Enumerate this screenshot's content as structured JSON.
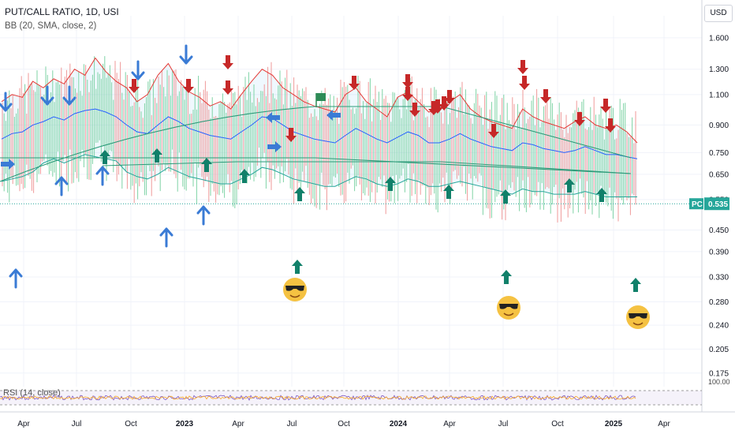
{
  "header": {
    "title": "PUT/CALL RATIO, 1D, USI",
    "indicator": "BB (20, SMA, close, 2)",
    "currency_button": "USD"
  },
  "rsi": {
    "label": "RSI (14, close)",
    "top_value": "100.00"
  },
  "price_tag": {
    "symbol": "PC",
    "value": "0.535",
    "color": "#26a69a"
  },
  "colors": {
    "candle_up": "#7fd3a6",
    "candle_down": "#ef9a9a",
    "bb_upper": "#e53935",
    "bb_lower": "#26a69a",
    "bb_basis": "#2962ff",
    "arrow_blue": "#3a7bd5",
    "arrow_red": "#c62828",
    "arrow_green": "#11806a"
  },
  "chart_data": {
    "type": "line",
    "title": "PUT/CALL RATIO, 1D, USI",
    "y_scale": "log",
    "y_ticks": [
      "1.600",
      "1.300",
      "1.100",
      "0.900",
      "0.750",
      "0.650",
      "0.550",
      "0.450",
      "0.390",
      "0.330",
      "0.280",
      "0.240",
      "0.205",
      "0.175"
    ],
    "x_ticks": [
      "Apr",
      "Jul",
      "Oct",
      "2023",
      "Apr",
      "Jul",
      "Oct",
      "2024",
      "Apr",
      "Jul",
      "Oct",
      "2025",
      "Apr"
    ],
    "x_ticks_bold": [
      "2023",
      "2024",
      "2025"
    ],
    "last_value": 0.535,
    "series": [
      {
        "name": "BB upper",
        "values": [
          1.05,
          1.1,
          1.08,
          1.2,
          1.15,
          1.22,
          1.18,
          1.3,
          1.25,
          1.4,
          1.28,
          1.2,
          1.15,
          1.05,
          1.1,
          1.25,
          1.35,
          1.2,
          1.12,
          1.08,
          1.02,
          1.05,
          1.0,
          1.1,
          1.2,
          1.3,
          1.25,
          1.15,
          1.1,
          1.05,
          1.02,
          1.0,
          0.98,
          1.1,
          1.15,
          1.05,
          1.0,
          0.95,
          1.08,
          1.12,
          1.05,
          0.98,
          1.0,
          1.05,
          1.1,
          1.0,
          0.95,
          0.92,
          0.9,
          0.88,
          1.0,
          0.95,
          0.92,
          0.9,
          0.88,
          0.92,
          0.95,
          0.9,
          0.88,
          0.9,
          0.86,
          0.8
        ]
      },
      {
        "name": "BB basis",
        "values": [
          0.82,
          0.85,
          0.86,
          0.9,
          0.92,
          0.95,
          0.93,
          0.97,
          0.99,
          1.0,
          0.98,
          0.95,
          0.9,
          0.86,
          0.85,
          0.9,
          0.95,
          0.92,
          0.88,
          0.86,
          0.84,
          0.83,
          0.82,
          0.86,
          0.9,
          0.95,
          0.94,
          0.9,
          0.86,
          0.84,
          0.82,
          0.81,
          0.8,
          0.84,
          0.88,
          0.85,
          0.82,
          0.8,
          0.83,
          0.86,
          0.84,
          0.8,
          0.8,
          0.82,
          0.85,
          0.82,
          0.8,
          0.78,
          0.77,
          0.76,
          0.8,
          0.79,
          0.77,
          0.76,
          0.75,
          0.76,
          0.78,
          0.76,
          0.74,
          0.74,
          0.73,
          0.72
        ]
      },
      {
        "name": "BB lower",
        "values": [
          0.62,
          0.63,
          0.64,
          0.66,
          0.7,
          0.72,
          0.7,
          0.72,
          0.74,
          0.73,
          0.72,
          0.71,
          0.66,
          0.64,
          0.63,
          0.65,
          0.68,
          0.66,
          0.64,
          0.63,
          0.62,
          0.61,
          0.61,
          0.63,
          0.65,
          0.68,
          0.67,
          0.65,
          0.63,
          0.62,
          0.61,
          0.6,
          0.6,
          0.62,
          0.64,
          0.63,
          0.61,
          0.6,
          0.61,
          0.63,
          0.62,
          0.6,
          0.6,
          0.61,
          0.62,
          0.61,
          0.6,
          0.59,
          0.58,
          0.57,
          0.59,
          0.58,
          0.58,
          0.57,
          0.57,
          0.57,
          0.58,
          0.57,
          0.56,
          0.56,
          0.56,
          0.56
        ]
      }
    ],
    "rsi_range": [
      0,
      100
    ]
  }
}
